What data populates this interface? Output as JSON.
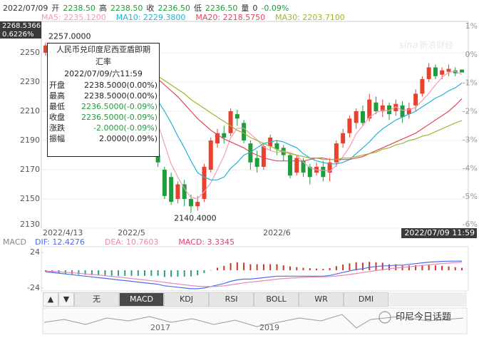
{
  "header": {
    "date": "2022/07/09",
    "items": [
      {
        "label": "开",
        "value": "2238.50",
        "color": "#1e9d3c"
      },
      {
        "label": "高",
        "value": "2238.50",
        "color": "#1e9d3c"
      },
      {
        "label": "收",
        "value": "2236.50",
        "color": "#1e9d3c"
      },
      {
        "label": "低",
        "value": "2236.50",
        "color": "#1e9d3c"
      },
      {
        "label": "量",
        "value": "0",
        "color": "#333333"
      }
    ],
    "change": {
      "value": "-0.09%",
      "color": "#1e9d3c"
    }
  },
  "cursor_labels": {
    "price": "2268.5366",
    "percent": "0.6226%"
  },
  "tooltip": {
    "title_lines": [
      "人民币兑印度尼西亚盾即期",
      "汇率"
    ],
    "time": "2022/07/09/六11:59",
    "rows": [
      {
        "label": "开盘",
        "value": "2238.5000(0.00%)",
        "color": "#222222"
      },
      {
        "label": "最高",
        "value": "2238.5000(0.00%)",
        "color": "#222222"
      },
      {
        "label": "最低",
        "value": "2236.5000(-0.09%)",
        "color": "#1e9d3c"
      },
      {
        "label": "收盘",
        "value": "2236.5000(-0.09%)",
        "color": "#1e9d3c"
      },
      {
        "label": "涨跌",
        "value": "-2.0000(-0.09%)",
        "color": "#1e9d3c"
      },
      {
        "label": "振幅",
        "value": "2.0000(0.09%)",
        "color": "#222222"
      }
    ]
  },
  "indicator_tabs": {
    "arrows": [
      "▲",
      "▼"
    ],
    "tabs": [
      "无",
      "MACD",
      "KDJ",
      "RSI",
      "BOLL",
      "WR",
      "DMI"
    ],
    "selected": 1
  },
  "overview": {
    "years": [
      "2017",
      "2019"
    ]
  },
  "watermark": {
    "brand": "sina",
    "name": "新浪财经",
    "footer": "印尼今日话题"
  },
  "chart_data": [
    {
      "type": "candlestick",
      "categories": [
        "2022/4/13",
        null,
        null,
        null,
        null,
        null,
        null,
        null,
        null,
        null,
        null,
        null,
        null,
        "2022/5",
        null,
        null,
        null,
        null,
        null,
        null,
        null,
        null,
        null,
        null,
        null,
        null,
        null,
        null,
        null,
        null,
        null,
        null,
        null,
        null,
        null,
        "2022/6",
        null,
        null,
        null,
        null,
        null,
        null,
        null,
        null,
        null,
        null,
        null,
        null,
        null,
        null,
        null,
        null,
        null,
        null,
        null,
        null,
        null,
        null,
        null,
        null,
        null,
        null,
        null,
        "2022/07/09 11:59"
      ],
      "open": [
        2250,
        2255,
        2252,
        2250,
        2246,
        2248,
        2242,
        2238,
        2240,
        2233,
        2230,
        2232,
        2225,
        2220,
        2222,
        2215,
        2200,
        2180,
        2170,
        2165,
        2150,
        2160,
        2150,
        2145,
        2150,
        2170,
        2188,
        2195,
        2195,
        2208,
        2202,
        2188,
        2178,
        2172,
        2186,
        2188,
        2185,
        2180,
        2168,
        2176,
        2172,
        2168,
        2172,
        2168,
        2175,
        2188,
        2195,
        2202,
        2210,
        2205,
        2216,
        2210,
        2214,
        2210,
        2214,
        2208,
        2214,
        2222,
        2232,
        2240,
        2235,
        2237,
        2238,
        2238.5
      ],
      "high": [
        2257,
        2256,
        2254,
        2252,
        2250,
        2249,
        2244,
        2242,
        2241,
        2235,
        2234,
        2233,
        2227,
        2224,
        2223,
        2217,
        2202,
        2183,
        2172,
        2168,
        2162,
        2163,
        2153,
        2152,
        2174,
        2192,
        2198,
        2200,
        2212,
        2211,
        2204,
        2190,
        2183,
        2188,
        2194,
        2190,
        2187,
        2182,
        2180,
        2178,
        2174,
        2175,
        2176,
        2178,
        2190,
        2198,
        2207,
        2212,
        2214,
        2222,
        2220,
        2218,
        2216,
        2218,
        2217,
        2216,
        2225,
        2234,
        2243,
        2242,
        2240,
        2242,
        2240,
        2238.5
      ],
      "low": [
        2248,
        2248,
        2246,
        2243,
        2242,
        2240,
        2235,
        2234,
        2230,
        2226,
        2226,
        2222,
        2216,
        2216,
        2212,
        2202,
        2186,
        2172,
        2150,
        2146,
        2147,
        2145,
        2140.4,
        2142,
        2148,
        2168,
        2185,
        2188,
        2193,
        2200,
        2188,
        2170,
        2168,
        2170,
        2183,
        2180,
        2176,
        2164,
        2166,
        2165,
        2160,
        2166,
        2162,
        2162,
        2172,
        2185,
        2192,
        2198,
        2200,
        2203,
        2208,
        2206,
        2204,
        2207,
        2202,
        2205,
        2210,
        2220,
        2230,
        2232,
        2232,
        2234,
        2234,
        2236.5
      ],
      "close": [
        2255,
        2252,
        2250,
        2246,
        2248,
        2242,
        2238,
        2240,
        2233,
        2230,
        2232,
        2225,
        2220,
        2222,
        2215,
        2205,
        2190,
        2175,
        2152,
        2148,
        2160,
        2150,
        2145,
        2148,
        2172,
        2190,
        2195,
        2192,
        2210,
        2205,
        2190,
        2175,
        2172,
        2186,
        2192,
        2184,
        2180,
        2166,
        2178,
        2168,
        2165,
        2172,
        2165,
        2175,
        2188,
        2195,
        2205,
        2210,
        2202,
        2218,
        2210,
        2214,
        2208,
        2215,
        2206,
        2212,
        2222,
        2232,
        2240,
        2234,
        2238,
        2239,
        2236,
        2236.5
      ],
      "up_color": "#e8412c",
      "down_color": "#1e9d3c",
      "high_label": "2257.0000",
      "low_label": "2140.4000",
      "ylim": [
        2130,
        2270
      ],
      "yticks": [
        2250,
        2230,
        2210,
        2190,
        2170,
        2150,
        2130
      ],
      "y2lim": [
        -6.1,
        1.1
      ],
      "y2ticks": [
        {
          "value": 1,
          "label": "1%"
        },
        {
          "value": 0,
          "label": "0%"
        },
        {
          "value": -1,
          "label": "-1%"
        },
        {
          "value": -2,
          "label": "-2%"
        },
        {
          "value": -3,
          "label": "-3%"
        },
        {
          "value": -4,
          "label": "-4%"
        },
        {
          "value": -5,
          "label": "-5%"
        },
        {
          "value": -6,
          "label": "-6%"
        }
      ],
      "grid": true,
      "series": [
        {
          "name": "MA5: 2235.1200",
          "color": "#f39bb3",
          "values": [
            null,
            null,
            null,
            null,
            null,
            null,
            null,
            null,
            null,
            null,
            null,
            null,
            null,
            null,
            null,
            2217.4,
            2210.4,
            2201.4,
            2187.4,
            2174,
            2165,
            2157,
            2151,
            2150.2,
            2155,
            2161,
            2170,
            2179.4,
            2191.8,
            2198.4,
            2198.4,
            2194.4,
            2190.4,
            2185.6,
            2183,
            2181.8,
            2182.8,
            2181.6,
            2180,
            2175.2,
            2171.4,
            2169.8,
            2169.6,
            2169,
            2173,
            2179,
            2185.6,
            2194.6,
            2200,
            2206,
            2209,
            2210.8,
            2210.4,
            2213,
            2210.6,
            2211,
            2212.6,
            2217.4,
            2222.4,
            2228,
            2233.2,
            2236.6,
            2237.4,
            2235.12
          ]
        },
        {
          "name": "MA10: 2229.3800",
          "color": "#22b2d6",
          "values": [
            null,
            null,
            null,
            null,
            null,
            null,
            null,
            null,
            null,
            null,
            null,
            null,
            null,
            null,
            null,
            2226,
            2222,
            2217,
            2210,
            2202,
            2193,
            2185,
            2176,
            2168,
            2165,
            2163,
            2163,
            2165,
            2171,
            2175,
            2180,
            2182,
            2185,
            2188,
            2189,
            2190,
            2189,
            2187,
            2185,
            2181,
            2178,
            2176,
            2175,
            2174,
            2174,
            2175,
            2177,
            2181,
            2185,
            2189,
            2194,
            2198,
            2201,
            2204,
            2206,
            2208,
            2210,
            2213,
            2216,
            2219,
            2221,
            2224,
            2226,
            2229.38
          ]
        },
        {
          "name": "MA20: 2218.5750",
          "color": "#e2465f",
          "values": [
            null,
            null,
            null,
            null,
            null,
            null,
            null,
            null,
            null,
            null,
            null,
            null,
            null,
            null,
            null,
            2238,
            2235,
            2232,
            2228,
            2224,
            2220,
            2215,
            2210,
            2205,
            2201,
            2197,
            2194,
            2191,
            2189,
            2187,
            2185,
            2182,
            2180,
            2178,
            2177,
            2176,
            2176,
            2176,
            2176,
            2176,
            2177,
            2178,
            2178,
            2177,
            2177,
            2177,
            2177,
            2178,
            2179,
            2181,
            2183,
            2185,
            2187,
            2189,
            2191,
            2193,
            2195,
            2198,
            2201,
            2204,
            2207,
            2210,
            2214,
            2218.575
          ]
        },
        {
          "name": "MA30: 2203.7100",
          "color": "#9bb82a",
          "values": [
            null,
            null,
            null,
            null,
            null,
            null,
            null,
            null,
            null,
            null,
            null,
            null,
            null,
            null,
            null,
            2240,
            2237,
            2234,
            2231,
            2228,
            2225,
            2222,
            2218,
            2215,
            2212,
            2209,
            2206,
            2203,
            2200,
            2197,
            2195,
            2192,
            2190,
            2188,
            2186,
            2184,
            2182,
            2181,
            2180,
            2179,
            2178,
            2178,
            2177,
            2177,
            2177,
            2178,
            2178,
            2179,
            2180,
            2181,
            2182,
            2184,
            2185,
            2187,
            2188,
            2190,
            2191,
            2193,
            2194,
            2196,
            2198,
            2200,
            2202,
            2203.71
          ]
        }
      ]
    },
    {
      "type": "macd",
      "title": "MACD",
      "ylim": [
        -28,
        28
      ],
      "yticks": [
        24,
        -24
      ],
      "series": [
        {
          "name": "DIF: 12.4276",
          "color": "#4b6cf0",
          "values": [
            -2,
            -3,
            -4,
            -5,
            -6,
            -7,
            -8,
            -9,
            -10,
            -11,
            -12,
            -13,
            -14,
            -15,
            -16,
            -17,
            -18,
            -19,
            -21,
            -22,
            -23,
            -24,
            -25,
            -25,
            -24,
            -22,
            -20,
            -18,
            -15,
            -13,
            -12,
            -12,
            -11,
            -10,
            -9,
            -8,
            -8,
            -8,
            -8,
            -8,
            -8,
            -8,
            -8,
            -7,
            -5,
            -3,
            -1,
            1,
            2,
            4,
            5,
            6,
            6,
            7,
            7,
            8,
            9,
            10,
            11,
            11.5,
            12,
            12.3,
            12.4,
            12.4276
          ]
        },
        {
          "name": "DEA: 10.7603",
          "color": "#ec86b6",
          "values": [
            -1,
            -1.5,
            -2,
            -2.7,
            -3.4,
            -4.1,
            -4.9,
            -5.7,
            -6.5,
            -7.4,
            -8.3,
            -9.2,
            -10.2,
            -11.2,
            -12.2,
            -13.2,
            -14.2,
            -15.2,
            -16.4,
            -17.5,
            -18.6,
            -19.7,
            -20.8,
            -21.6,
            -22.1,
            -22.1,
            -21.7,
            -21,
            -19.8,
            -18.4,
            -17.1,
            -16.1,
            -15.1,
            -14.1,
            -13.1,
            -12.1,
            -11.3,
            -10.6,
            -10.1,
            -9.7,
            -9.4,
            -9.1,
            -8.9,
            -8.5,
            -7.8,
            -6.9,
            -5.7,
            -4.4,
            -3.1,
            -1.7,
            -0.4,
            0.9,
            2,
            3,
            3.9,
            4.7,
            5.6,
            6.5,
            7.4,
            8.2,
            9,
            9.7,
            10.3,
            10.7603
          ]
        }
      ],
      "histogram": {
        "name": "MACD: 3.3345",
        "color": "#d6457a",
        "up_color": "#c0392b",
        "down_color": "#2a9d8f",
        "values": [
          -2,
          -3,
          -4,
          -4.6,
          -5.2,
          -5.8,
          -6.2,
          -6.6,
          -7,
          -7.2,
          -7.4,
          -7.6,
          -7.6,
          -7.6,
          -7.6,
          -7.6,
          -7.6,
          -7.6,
          -9.2,
          -9,
          -8.8,
          -8.6,
          -8.4,
          -6.8,
          -3.8,
          0.2,
          3.4,
          6,
          9.6,
          10.8,
          10.2,
          8.2,
          8.2,
          8.2,
          8.2,
          8.2,
          6.6,
          5.2,
          4.2,
          3.4,
          2.8,
          2.2,
          1.8,
          3,
          5.6,
          7.8,
          9.4,
          10.8,
          10.2,
          11.4,
          10.8,
          10.2,
          8,
          8,
          6.2,
          6.6,
          6.8,
          7,
          7.2,
          6.6,
          6,
          5.2,
          4.2,
          3.3345
        ]
      }
    }
  ]
}
